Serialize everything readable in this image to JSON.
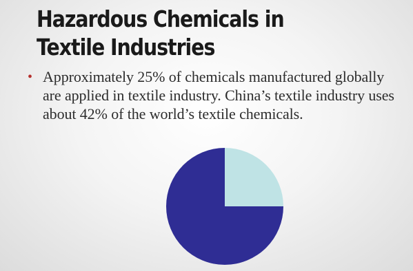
{
  "slide": {
    "title_line1": "Hazardous Chemicals in",
    "title_line2": "Textile Industries",
    "bullet_symbol": "•",
    "bullet_text": "Approximately 25% of chemicals manufactured globally are applied in textile industry. China’s textile industry uses about 42% of the world’s textile chemicals."
  },
  "colors": {
    "bullet": "#b5302d",
    "title": "#1a1a1a"
  },
  "chart_data": {
    "type": "pie",
    "title": "",
    "start_angle_deg": 90,
    "direction": "clockwise",
    "slices": [
      {
        "value": 25,
        "color": "#bfe3e5"
      },
      {
        "value": 75,
        "color": "#2f2d94"
      }
    ]
  }
}
